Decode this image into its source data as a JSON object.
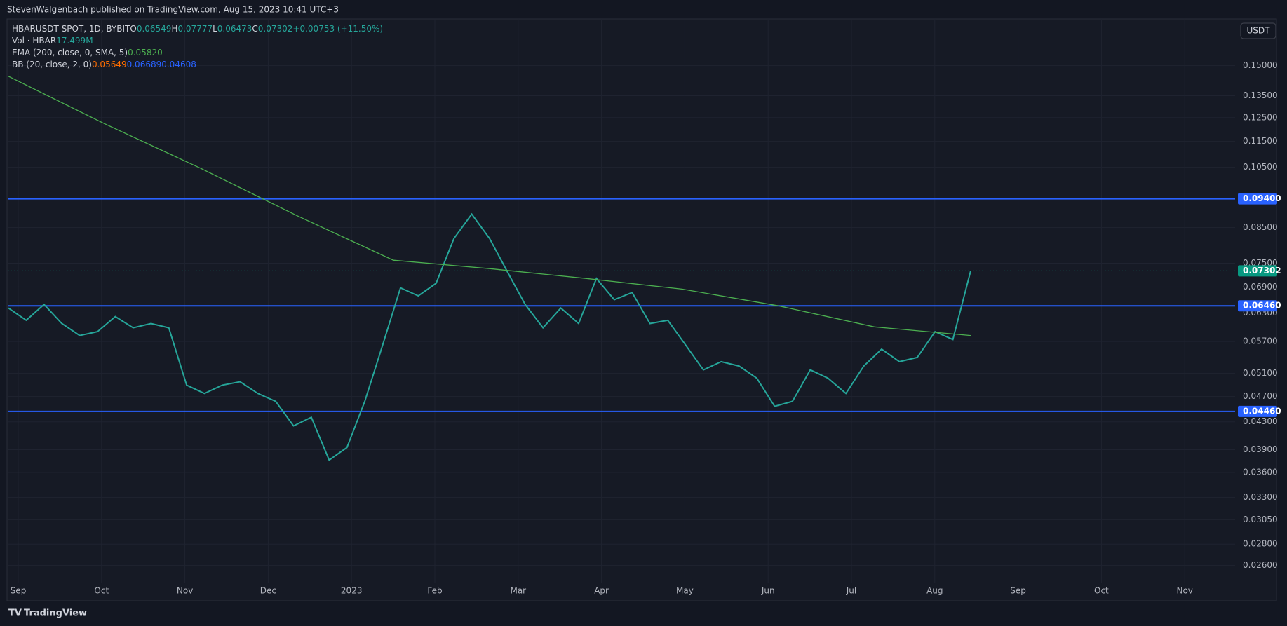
{
  "header": {
    "publisher": "StevenWalgenbach published on TradingView.com, Aug 15, 2023 10:41 UTC+3",
    "currency": "USDT",
    "brand": "TradingView"
  },
  "legend": {
    "ohlc": [
      {
        "label": "O",
        "value": "0.06549"
      },
      {
        "label": "H",
        "value": "0.07777"
      },
      {
        "label": "L",
        "value": "0.06473"
      },
      {
        "label": "C",
        "value": "0.07302"
      }
    ],
    "change": "+0.00753 (+11.50%)",
    "volume": {
      "name": "Vol · HBAR",
      "value": "17.499M"
    },
    "ema_value": "0.05820",
    "bb": {
      "name": "BB (20, close, 2, 0)",
      "values": [
        "0.05649",
        "0.06689",
        "0.04608"
      ]
    }
  },
  "chart_data": {
    "type": "line",
    "yscale": "log",
    "ylim": [
      0.02447,
      0.1767
    ],
    "yticks": [
      {
        "value": 0.15,
        "label": "0.15000"
      },
      {
        "value": 0.135,
        "label": "0.13500"
      },
      {
        "value": 0.125,
        "label": "0.12500"
      },
      {
        "value": 0.115,
        "label": "0.11500"
      },
      {
        "value": 0.105,
        "label": "0.10500"
      },
      {
        "value": 0.085,
        "label": "0.08500"
      },
      {
        "value": 0.075,
        "label": "0.07500"
      },
      {
        "value": 0.069,
        "label": "0.06900"
      },
      {
        "value": 0.063,
        "label": "0.06300"
      },
      {
        "value": 0.057,
        "label": "0.05700"
      },
      {
        "value": 0.051,
        "label": "0.05100"
      },
      {
        "value": 0.047,
        "label": "0.04700"
      },
      {
        "value": 0.043,
        "label": "0.04300"
      },
      {
        "value": 0.039,
        "label": "0.03900"
      },
      {
        "value": 0.036,
        "label": "0.03600"
      },
      {
        "value": 0.033,
        "label": "0.03300"
      },
      {
        "value": 0.0305,
        "label": "0.03050"
      },
      {
        "value": 0.028,
        "label": "0.02800"
      },
      {
        "value": 0.026,
        "label": "0.02600"
      }
    ],
    "xticks": [
      "Sep",
      "Oct",
      "Nov",
      "Dec",
      "2023",
      "Feb",
      "Mar",
      "Apr",
      "May",
      "Jun",
      "Jul",
      "Aug",
      "Sep",
      "Oct",
      "Nov"
    ],
    "levels": [
      {
        "value": 0.094,
        "label": "0.09400",
        "color": "#2962ff"
      },
      {
        "value": 0.0646,
        "label": "0.06460",
        "color": "#2962ff"
      },
      {
        "value": 0.0446,
        "label": "0.04460",
        "color": "#2962ff"
      }
    ],
    "last_price": {
      "value": 0.07302,
      "label": "0.07302",
      "color": "#089981"
    },
    "series": [
      {
        "name": "HBARUSDT SPOT, 1D, BYBIT",
        "color": "#26a69a",
        "values": [
          0.0641,
          0.0614,
          0.0649,
          0.0607,
          0.0582,
          0.059,
          0.0622,
          0.0598,
          0.0607,
          0.0598,
          0.0489,
          0.0475,
          0.0489,
          0.0495,
          0.0475,
          0.0462,
          0.0424,
          0.0437,
          0.0376,
          0.0393,
          0.0462,
          0.0563,
          0.0688,
          0.0669,
          0.0699,
          0.0818,
          0.0891,
          0.0818,
          0.0728,
          0.0649,
          0.0598,
          0.0641,
          0.0607,
          0.0711,
          0.066,
          0.0677,
          0.0607,
          0.0614,
          0.0563,
          0.0516,
          0.0531,
          0.0523,
          0.0501,
          0.0454,
          0.0462,
          0.0516,
          0.0501,
          0.0475,
          0.0523,
          0.0555,
          0.0531,
          0.0539,
          0.059,
          0.0574,
          0.07302
        ]
      },
      {
        "name": "EMA (200, close, 0, SMA, 5)",
        "color": "#4caf50",
        "values": [
          0.1445,
          0.1223,
          0.1046,
          0.0886,
          0.0758,
          0.0736,
          0.0711,
          0.0685,
          0.0646,
          0.06,
          0.0582
        ]
      }
    ]
  }
}
